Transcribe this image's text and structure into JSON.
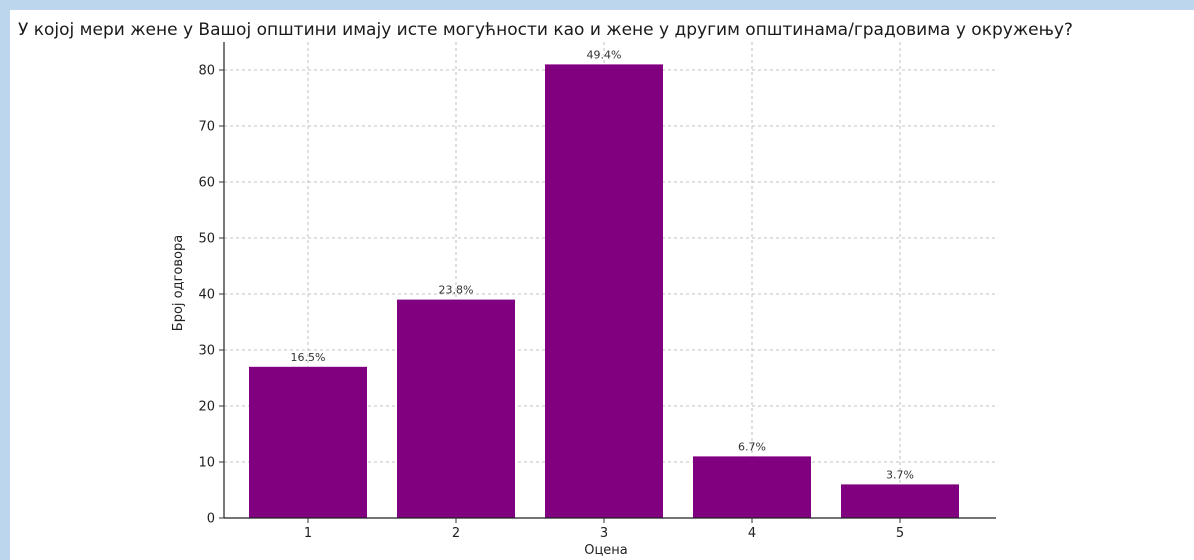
{
  "question_title": "У којој мери жене у Вашој општини имају исте могућности као и жене у другим општинама/градовима у окружењу?",
  "colors": {
    "bar": "#800080",
    "background": "#bcd6ee",
    "grid": "#b0b0b0"
  },
  "chart_data": {
    "type": "bar",
    "title": "У којој мери жене у Вашој општини имају исте могућности као и жене у другим општинама/градовима у окружењу?",
    "xlabel": "Оцена",
    "ylabel": "Број одговора",
    "categories": [
      "1",
      "2",
      "3",
      "4",
      "5"
    ],
    "values": [
      27,
      39,
      81,
      11,
      6
    ],
    "data_labels": [
      "16.5%",
      "23.8%",
      "49.4%",
      "6.7%",
      "3.7%"
    ],
    "yticks": [
      0,
      10,
      20,
      30,
      40,
      50,
      60,
      70,
      80
    ],
    "ylim": [
      0,
      85
    ],
    "grid": true
  }
}
